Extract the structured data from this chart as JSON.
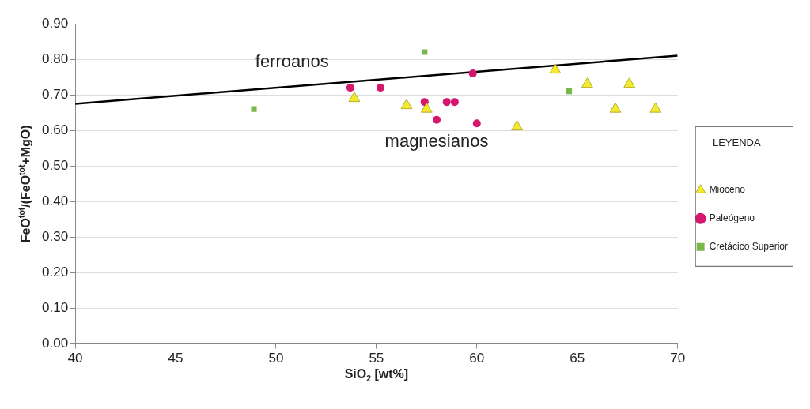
{
  "chart_data": {
    "type": "scatter",
    "xlabel": "SiO$_{2}$ [wt%]",
    "ylabel": "FeO$^{tot}$/(FeO$^{tot}$+MgO)",
    "legend_title": "LEYENDA",
    "legend": "right",
    "grid": "y",
    "xlim": [
      40,
      70
    ],
    "xticks": [
      40,
      45,
      50,
      55,
      60,
      65,
      70
    ],
    "ylim": [
      0,
      0.9
    ],
    "yticks": [
      {
        "value": 0,
        "label": "0.00"
      },
      {
        "value": 0.1,
        "label": "0.10"
      },
      {
        "value": 0.2,
        "label": "0.20"
      },
      {
        "value": 0.3,
        "label": "0.30"
      },
      {
        "value": 0.4,
        "label": "0.40"
      },
      {
        "value": 0.5,
        "label": "0.50"
      },
      {
        "value": 0.6,
        "label": "0.60"
      },
      {
        "value": 0.7,
        "label": "0.70"
      },
      {
        "value": 0.8,
        "label": "0.80"
      },
      {
        "value": 0.9,
        "label": "0.90"
      }
    ],
    "series": [
      {
        "name": "Mioceno",
        "type": "scatter",
        "marker": "triangle",
        "color": "#f2ea2e",
        "x": [
          53.9,
          56.5,
          57.5,
          62.0,
          63.9,
          65.5,
          67.6,
          66.9,
          68.9
        ],
        "values": [
          0.69,
          0.67,
          0.66,
          0.61,
          0.77,
          0.73,
          0.73,
          0.66,
          0.66
        ]
      },
      {
        "name": "Paleógeno",
        "type": "scatter",
        "marker": "circle",
        "color": "#d6156e",
        "x": [
          53.7,
          55.2,
          57.4,
          58.5,
          58.9,
          58.0,
          60.0,
          59.8
        ],
        "values": [
          0.72,
          0.72,
          0.68,
          0.68,
          0.68,
          0.63,
          0.62,
          0.76
        ]
      },
      {
        "name": "Cretácico Superior",
        "type": "scatter",
        "marker": "square",
        "color": "#7ab648",
        "x": [
          48.9,
          57.4,
          64.6
        ],
        "values": [
          0.66,
          0.82,
          0.71
        ]
      },
      {
        "type": "line",
        "marker": "none",
        "color": "#000000",
        "x": [
          40,
          70
        ],
        "values": [
          0.675,
          0.81
        ]
      }
    ],
    "annotations": [
      "ferroanos",
      "magnesianos"
    ]
  }
}
